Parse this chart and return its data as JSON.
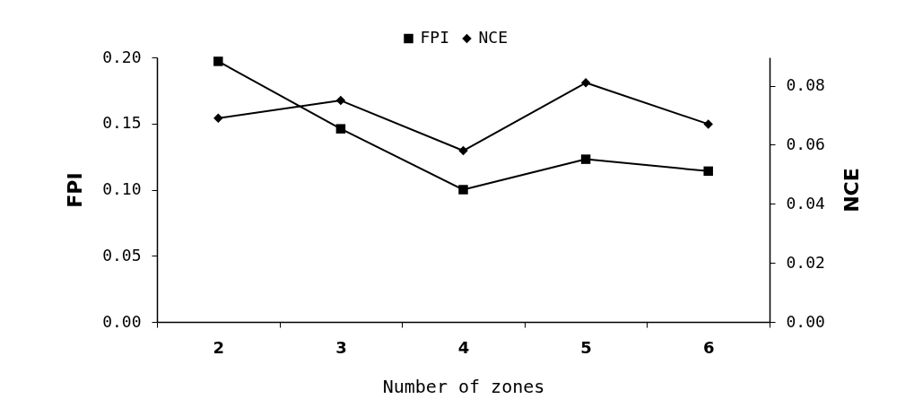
{
  "chart_data": {
    "type": "line",
    "xlabel": "Number of zones",
    "ylabel": "FPI",
    "y2label": "NCE",
    "categories": [
      "2",
      "3",
      "4",
      "5",
      "6"
    ],
    "series": [
      {
        "name": "FPI",
        "color": "#000000",
        "marker": "square",
        "values": [
          0.197,
          0.146,
          0.1,
          0.123,
          0.114
        ]
      },
      {
        "name": "NCE",
        "color": "#000000",
        "marker": "diamond",
        "axis": "y2",
        "values": [
          0.069,
          0.075,
          0.058,
          0.081,
          0.067
        ]
      }
    ],
    "ylim": [
      0,
      0.2
    ],
    "yticks": [
      {
        "value": 0,
        "label": "0.00"
      },
      0.05,
      {
        "value": 0.1,
        "label": "0.10"
      },
      0.15,
      {
        "value": 0.2,
        "label": "0.20"
      }
    ],
    "y2lim": [
      0,
      0.0896
    ],
    "y2ticks": [
      {
        "value": 0,
        "label": "0.00"
      },
      0.02,
      0.04,
      0.06,
      0.08
    ],
    "legend": "top",
    "grid": false,
    "line_style": "solid"
  }
}
